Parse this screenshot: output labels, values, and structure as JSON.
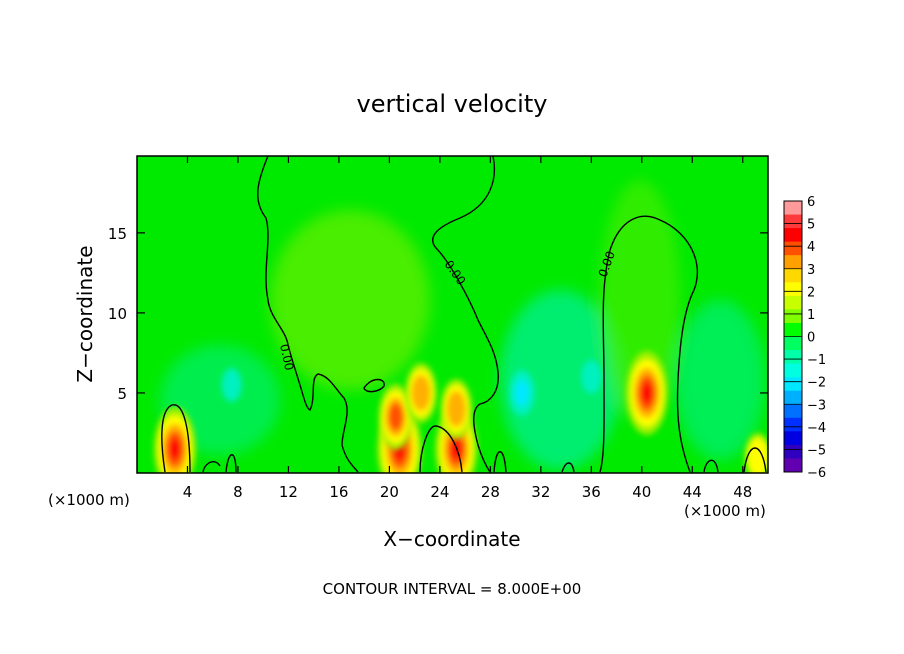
{
  "chart_data": {
    "type": "heatmap",
    "title": "vertical velocity",
    "xlabel": "X−coordinate",
    "ylabel": "Z−coordinate",
    "x_unit": "(×1000 m)",
    "x_unit_right": "(×1000 m)",
    "xlim": [
      0,
      50
    ],
    "ylim": [
      0,
      19.8
    ],
    "x_ticks": [
      4,
      8,
      12,
      16,
      20,
      24,
      28,
      32,
      36,
      40,
      44,
      48
    ],
    "y_ticks": [
      5,
      10,
      15
    ],
    "footer": "CONTOUR INTERVAL = 8.000E+00",
    "contour_label": "0.00",
    "colorbar": {
      "min": -6,
      "max": 6,
      "ticks": [
        "6",
        "5",
        "4",
        "3",
        "2",
        "1",
        "0",
        "−1",
        "−2",
        "−3",
        "−4",
        "−5",
        "−6"
      ],
      "colors": [
        "#ff9a9a",
        "#ff3a3a",
        "#ff0000",
        "#ff5000",
        "#ffa000",
        "#ffd800",
        "#ffff00",
        "#c8ff00",
        "#80ff00",
        "#00ff00",
        "#00ff60",
        "#00ffa8",
        "#00ffe0",
        "#00e8ff",
        "#00b0ff",
        "#0070ff",
        "#0030ff",
        "#0000e0",
        "#3000c0",
        "#6000b0"
      ]
    },
    "features": [
      {
        "x": 3.0,
        "z": 1.5,
        "w": 5.0
      },
      {
        "x": 20.8,
        "z": 1.5,
        "w": 5.5
      },
      {
        "x": 20.5,
        "z": 3.5,
        "w": 3.5
      },
      {
        "x": 22.5,
        "z": 5.0,
        "w": 3.0
      },
      {
        "x": 25.3,
        "z": 1.5,
        "w": 5.0
      },
      {
        "x": 25.3,
        "z": 4.0,
        "w": 3.0
      },
      {
        "x": 40.4,
        "z": 5.0,
        "w": 5.0
      },
      {
        "x": 49.2,
        "z": 1.0,
        "w": 2.0
      },
      {
        "x": 30.5,
        "z": 5.0,
        "w": -1.8
      },
      {
        "x": 7.5,
        "z": 5.5,
        "w": -0.8
      },
      {
        "x": 36.0,
        "z": 6.0,
        "w": -0.8
      }
    ]
  }
}
